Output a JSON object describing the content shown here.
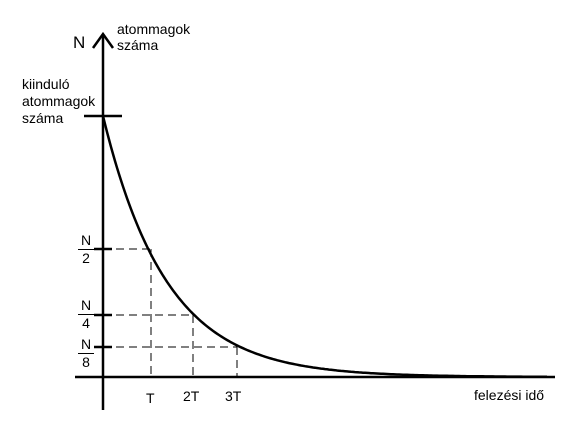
{
  "diagram": {
    "y_axis_symbol": "N",
    "y_axis_title": [
      "atommagok",
      "száma"
    ],
    "start_label": [
      "kiinduló",
      "atommagok",
      "száma"
    ],
    "x_axis_title": "felezési idő",
    "x_ticks": [
      "T",
      "2T",
      "3T"
    ],
    "y_fractions": [
      {
        "numerator": "N",
        "denominator": "2",
        "value": 0.5
      },
      {
        "numerator": "N",
        "denominator": "4",
        "value": 0.25
      },
      {
        "numerator": "N",
        "denominator": "8",
        "value": 0.125
      }
    ]
  },
  "chart_data": {
    "type": "line",
    "title": "",
    "xlabel": "felezési idő",
    "ylabel": "atommagok száma",
    "x_ticks": [
      "T",
      "2T",
      "3T"
    ],
    "y_ticks": [
      "N/2",
      "N/4",
      "N/8"
    ],
    "series": [
      {
        "x": [
          0,
          1,
          2,
          3,
          4,
          5,
          6,
          7
        ],
        "y": [
          1,
          0.5,
          0.25,
          0.125,
          0.0625,
          0.03125,
          0.015625,
          0.0078125
        ]
      }
    ],
    "curve": "exponential decay",
    "guides": "dashed",
    "grid": false
  },
  "colors": {
    "ink": "#000000",
    "background": "#ffffff"
  }
}
